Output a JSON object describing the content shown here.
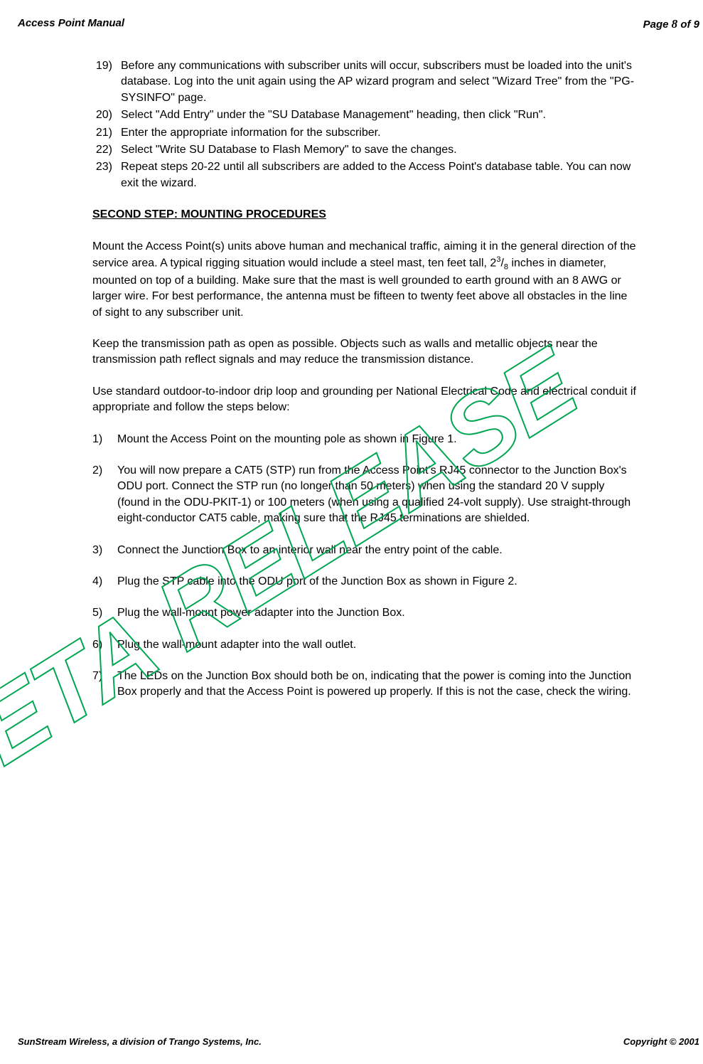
{
  "header": {
    "left": "Access Point Manual",
    "right_prefix": "Page ",
    "page_num": "8",
    "right_suffix": " of 9"
  },
  "first_list": [
    {
      "num": "19)",
      "text": "Before any communications with subscriber units will occur, subscribers must be loaded into the unit's database. Log into the unit again using the AP wizard program and select \"Wizard Tree\" from the \"PG-SYSINFO\" page."
    },
    {
      "num": "20)",
      "text": "Select \"Add Entry\" under the \"SU Database Management\" heading, then click \"Run\"."
    },
    {
      "num": "21)",
      "text": "Enter the appropriate information for the subscriber."
    },
    {
      "num": "22)",
      "text": "Select \"Write SU Database to Flash Memory\" to save the changes."
    },
    {
      "num": "23)",
      "text": "Repeat steps 20-22 until all subscribers are added to the Access Point's database table.  You can now exit the wizard."
    }
  ],
  "section_heading": "SECOND STEP: MOUNTING PROCEDURES",
  "para1_before": "Mount the Access Point(s) units above human and mechanical traffic, aiming it in the general direction of the service area.  A typical rigging situation would include a steel mast, ten feet tall, 2",
  "para1_sup": "3",
  "para1_slash": "/",
  "para1_sub": "8",
  "para1_after": " inches in diameter, mounted on top of a building.  Make sure that the mast is well grounded to earth ground with an 8 AWG or larger wire.  For best performance, the antenna must be fifteen to twenty feet above all obstacles in the line of sight to any subscriber unit.",
  "para2": "Keep the transmission path as open as possible.  Objects such as walls and metallic objects near the transmission path reflect signals and may reduce the transmission distance.",
  "para3": "Use standard outdoor-to-indoor drip loop and grounding per National Electrical Code and electrical conduit if appropriate and follow the steps below:",
  "second_list": [
    {
      "num": "1)",
      "text": "Mount the Access Point on the mounting pole as shown in Figure 1."
    },
    {
      "num": "2)",
      "text": "You will now prepare a CAT5 (STP) run from the Access Point's RJ45 connector to the Junction Box's ODU port.  Connect the STP run (no longer than 50 meters) when using the standard 20 V supply (found in the ODU-PKIT-1) or 100 meters (when using a qualified 24-volt supply).  Use straight-through eight-conductor CAT5 cable, making sure that the RJ45 terminations are shielded."
    },
    {
      "num": "3)",
      "text": "Connect the Junction Box to an interior wall near the entry point of the cable."
    },
    {
      "num": "4)",
      "text": "Plug the STP cable into the ODU port of the Junction Box as shown in Figure 2."
    },
    {
      "num": "5)",
      "text": "Plug the wall-mount power adapter into the Junction Box."
    },
    {
      "num": "6)",
      "text": "Plug the wall-mount adapter into the wall outlet."
    },
    {
      "num": "7)",
      "text": "The LEDs on the Junction Box should both be on, indicating that the power is coming into the Junction Box properly and that the Access Point is powered up properly.  If this is not the case, check the wiring."
    }
  ],
  "footer": {
    "left": "SunStream Wireless, a division of Trango Systems, Inc.",
    "right": "Copyright © 2001"
  },
  "watermark": {
    "text": "BETA RELEASE",
    "stroke_color": "#00a651",
    "stroke_width": 2,
    "font_size": 140,
    "rotate": -32
  }
}
